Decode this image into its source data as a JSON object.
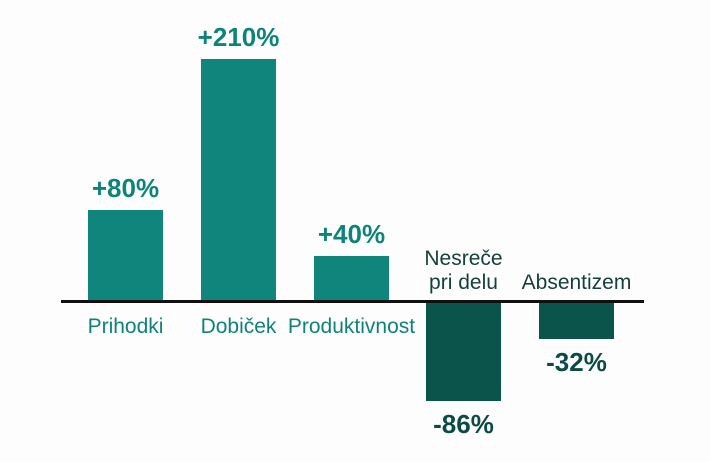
{
  "chart_data": {
    "type": "bar",
    "categories": [
      "Prihodki",
      "Dobiček",
      "Produktivnost",
      "Nesreče pri delu",
      "Absentizem"
    ],
    "values": [
      80,
      210,
      40,
      -86,
      -32
    ],
    "value_labels": [
      "+80%",
      "+210%",
      "+40%",
      "-86%",
      "-32%"
    ],
    "category_lines": [
      [
        "Prihodki"
      ],
      [
        "Dobiček"
      ],
      [
        "Produktivnost"
      ],
      [
        "Nesreče",
        "pri delu"
      ],
      [
        "Absentizem"
      ]
    ],
    "title": "",
    "xlabel": "",
    "ylabel": "",
    "ylim": [
      -100,
      230
    ],
    "grid": false,
    "legend": false,
    "unit": "%",
    "colors": {
      "positive_bar": "#10857B",
      "negative_bar": "#0A544B",
      "positive_value_text": "#0E837B",
      "negative_value_text": "#0C4B44",
      "positive_category_text": "#0F837B",
      "negative_category_text": "#16403B",
      "axis_line": "#101010",
      "background": "#fdfdfd"
    }
  }
}
